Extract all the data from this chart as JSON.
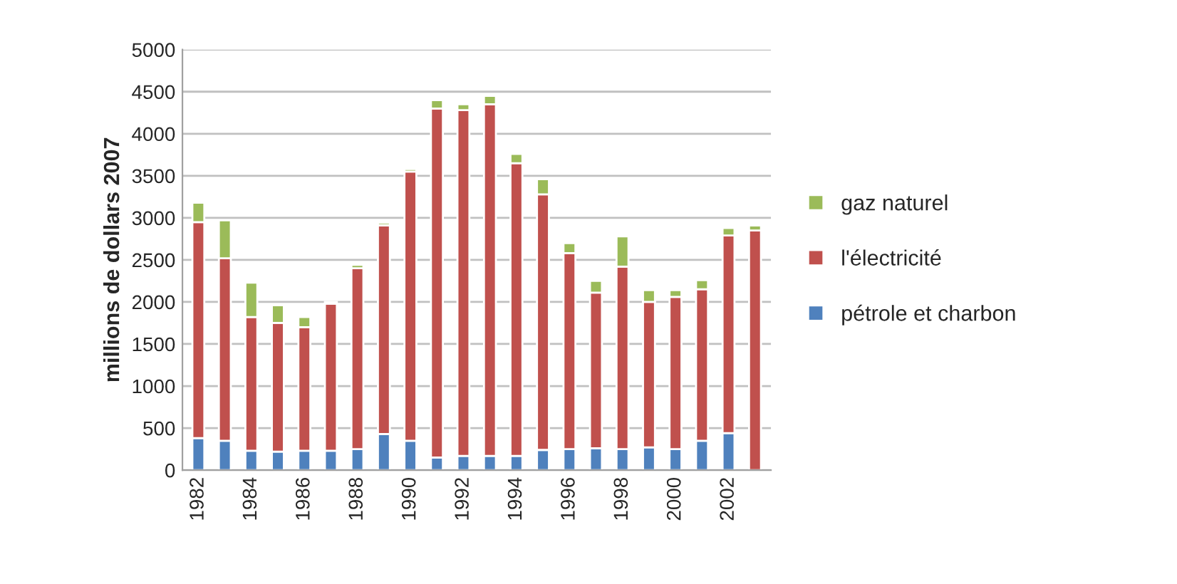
{
  "chart_data": {
    "type": "bar",
    "stacked": true,
    "ylabel": "millions de dollars 2007",
    "categories": [
      "1982",
      null,
      "1984",
      null,
      "1986",
      null,
      "1988",
      null,
      "1990",
      null,
      "1992",
      null,
      "1994",
      null,
      "1996",
      null,
      "1998",
      null,
      "2000",
      null,
      "2002",
      null
    ],
    "series": [
      {
        "name": "pétrole et charbon",
        "color": "#4f81bd",
        "values": [
          380,
          350,
          230,
          220,
          230,
          230,
          250,
          430,
          350,
          150,
          170,
          170,
          170,
          240,
          250,
          260,
          250,
          270,
          250,
          350,
          440,
          0
        ]
      },
      {
        "name": "l'électricité",
        "color": "#c0504d",
        "values": [
          2570,
          2170,
          1590,
          1530,
          1470,
          1750,
          2150,
          2480,
          3200,
          4150,
          4110,
          4180,
          3480,
          3040,
          2330,
          1850,
          2170,
          1730,
          1810,
          1800,
          2350,
          2850
        ]
      },
      {
        "name": "gaz naturel",
        "color": "#9bbb59",
        "values": [
          230,
          450,
          410,
          210,
          120,
          20,
          40,
          30,
          30,
          100,
          70,
          100,
          110,
          180,
          120,
          140,
          360,
          140,
          80,
          110,
          90,
          60
        ]
      }
    ],
    "ylim": [
      0,
      5000
    ],
    "yticks": [
      0,
      500,
      1000,
      1500,
      2000,
      2500,
      3000,
      3500,
      4000,
      4500,
      5000
    ],
    "grid": "y",
    "legend": "right"
  }
}
